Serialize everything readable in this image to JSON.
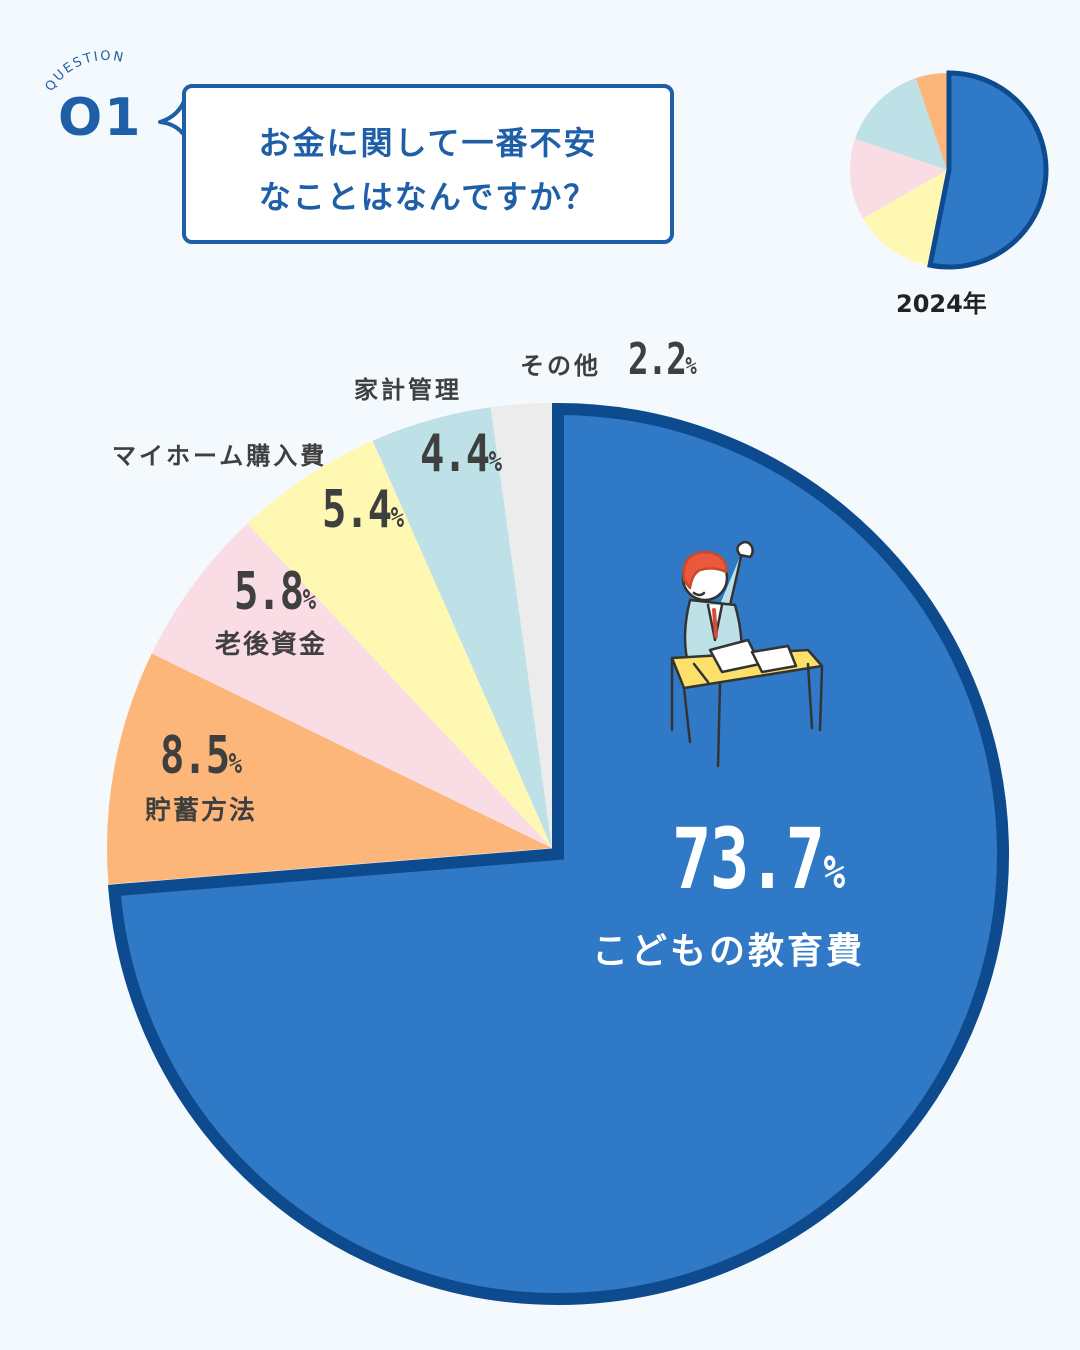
{
  "header": {
    "question_word": "QUESTION",
    "question_number": "O1",
    "question_line1": "お金に関して一番不安",
    "question_line2": "なことはなんですか？"
  },
  "mini_chart": {
    "year_label": "2024年"
  },
  "chart_data": {
    "type": "pie",
    "start": "12 o'clock, clockwise",
    "slices": [
      {
        "label": "こどもの教育費",
        "value": 73.7,
        "pct_text": "73.7",
        "color": "#2f79c6"
      },
      {
        "label": "貯蓄方法",
        "value": 8.5,
        "pct_text": "8.5",
        "color": "#fdb679"
      },
      {
        "label": "老後資金",
        "value": 5.8,
        "pct_text": "5.8",
        "color": "#fadde4"
      },
      {
        "label": "マイホーム購入費",
        "value": 5.4,
        "pct_text": "5.4",
        "color": "#fff8b3"
      },
      {
        "label": "家計管理",
        "value": 4.4,
        "pct_text": "4.4",
        "color": "#bde1e6"
      },
      {
        "label": "その他",
        "value": 2.2,
        "pct_text": "2.2",
        "color": "#ececec"
      }
    ],
    "percent_sign": "%",
    "highlight_color": "#0e4a8e"
  },
  "mini_chart_data": {
    "type": "pie",
    "slices": [
      {
        "value": 51,
        "color": "#2f79c6"
      },
      {
        "value": 13,
        "color": "#fff8b3"
      },
      {
        "value": 13,
        "color": "#fadde4"
      },
      {
        "value": 14,
        "color": "#bde1e6"
      },
      {
        "value": 5,
        "color": "#fdb679"
      }
    ]
  }
}
